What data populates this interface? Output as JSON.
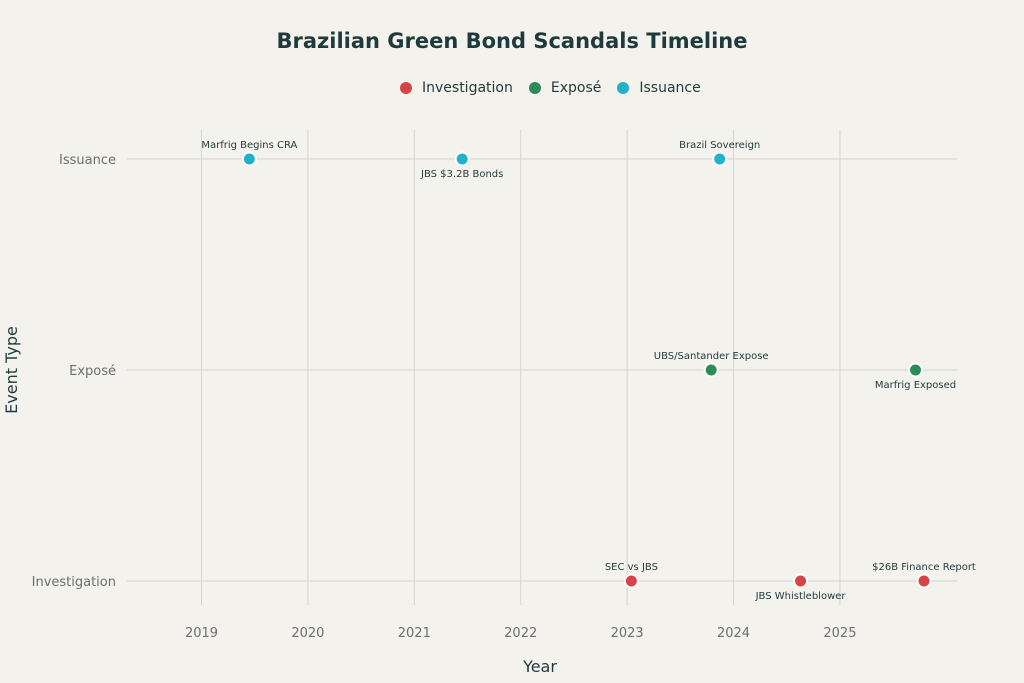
{
  "chart_data": {
    "type": "scatter",
    "title": "Brazilian Green Bond Scandals Timeline",
    "xlabel": "Year",
    "ylabel": "Event Type",
    "xlim": [
      2018.3,
      2026.1
    ],
    "x_ticks": [
      2019,
      2020,
      2021,
      2022,
      2023,
      2024,
      2025
    ],
    "y_categories": [
      "Investigation",
      "Exposé",
      "Issuance"
    ],
    "grid": true,
    "legend_position": "top-center",
    "series": [
      {
        "name": "Investigation",
        "color": "#d64545",
        "points": [
          {
            "x": 2023.04,
            "y": "Investigation",
            "label": "SEC vs JBS",
            "label_position": "above"
          },
          {
            "x": 2024.63,
            "y": "Investigation",
            "label": "JBS Whistleblower",
            "label_position": "below"
          },
          {
            "x": 2025.79,
            "y": "Investigation",
            "label": "$26B Finance Report",
            "label_position": "above"
          }
        ]
      },
      {
        "name": "Exposé",
        "color": "#2e8b57",
        "points": [
          {
            "x": 2023.79,
            "y": "Exposé",
            "label": "UBS/Santander Expose",
            "label_position": "above"
          },
          {
            "x": 2025.71,
            "y": "Exposé",
            "label": "Marfrig Exposed",
            "label_position": "below"
          }
        ]
      },
      {
        "name": "Issuance",
        "color": "#22b1cc",
        "points": [
          {
            "x": 2019.45,
            "y": "Issuance",
            "label": "Marfrig Begins CRA",
            "label_position": "above"
          },
          {
            "x": 2021.45,
            "y": "Issuance",
            "label": "JBS $3.2B Bonds",
            "label_position": "below"
          },
          {
            "x": 2023.87,
            "y": "Issuance",
            "label": "Brazil Sovereign",
            "label_position": "above"
          }
        ]
      }
    ]
  }
}
